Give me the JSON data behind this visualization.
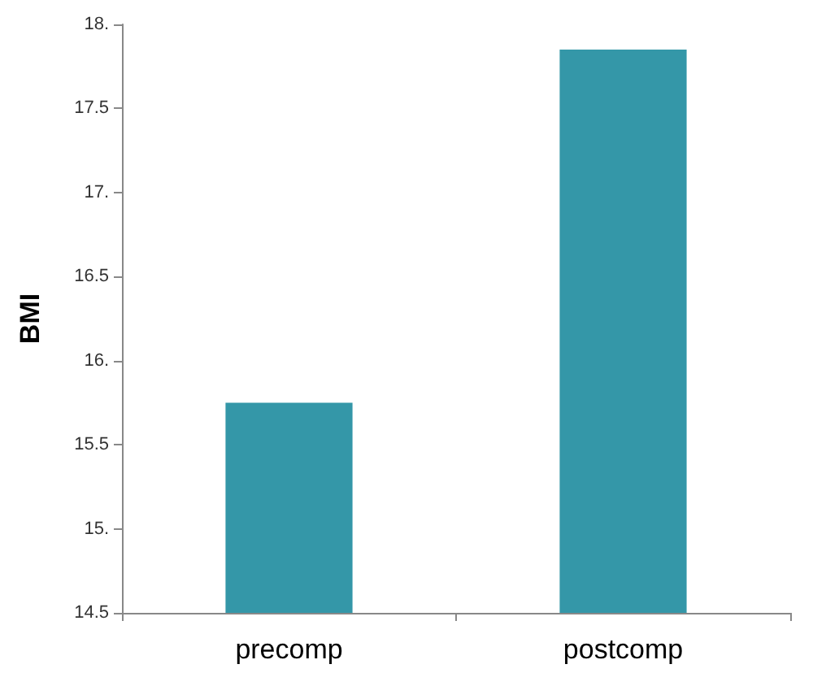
{
  "chart_data": {
    "type": "bar",
    "ylabel": "BMI",
    "categories": [
      "precomp",
      "postcomp"
    ],
    "values": [
      15.75,
      17.85
    ],
    "color": "#3497a8",
    "ylim": [
      14.5,
      18
    ],
    "yticks": [
      14.5,
      {
        "value": 15,
        "label": "15."
      },
      15.5,
      {
        "value": 16,
        "label": "16."
      },
      16.5,
      {
        "value": 17,
        "label": "17."
      },
      17.5,
      {
        "value": 18,
        "label": "18."
      }
    ],
    "grid": false
  }
}
